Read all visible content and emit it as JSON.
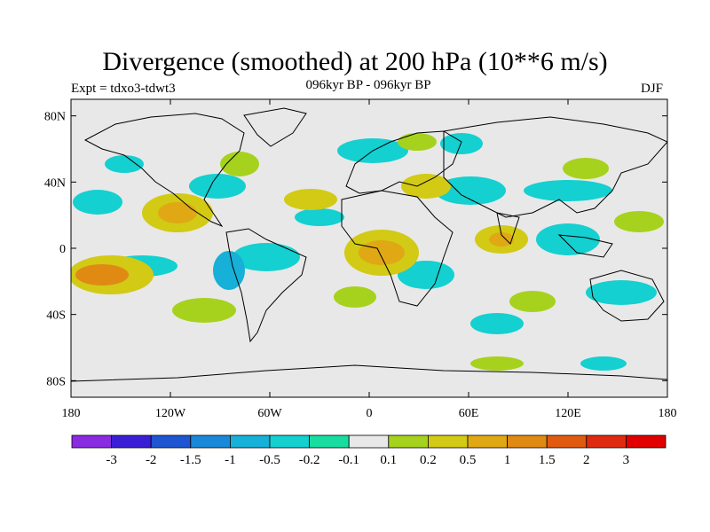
{
  "header": {
    "title": "Divergence (smoothed) at 200 hPa (10**6 m/s)",
    "expt": "Expt = tdxo3-tdwt3",
    "period": "096kyr BP - 096kyr BP",
    "season": "DJF"
  },
  "axes": {
    "y_ticks": [
      "80N",
      "40N",
      "0",
      "40S",
      "80S"
    ],
    "x_ticks": [
      "180",
      "120W",
      "60W",
      "0",
      "60E",
      "120E",
      "180"
    ]
  },
  "colorbar": {
    "labels": [
      "-3",
      "-2",
      "-1.5",
      "-1",
      "-0.5",
      "-0.2",
      "-0.1",
      "0.1",
      "0.2",
      "0.5",
      "1",
      "1.5",
      "2",
      "3"
    ],
    "colors": [
      "#8a2be2",
      "#3a1ed6",
      "#1e55d0",
      "#1a88d8",
      "#16b0d8",
      "#14d0d0",
      "#18dca0",
      "#e8e8e8",
      "#a6d21e",
      "#d2ca14",
      "#e0a814",
      "#e08a14",
      "#e05a10",
      "#e02a10",
      "#e00000"
    ]
  },
  "map": {
    "background": "#e8e8e8",
    "projection": "cylindrical-equidistant",
    "lon_range": [
      -180,
      180
    ],
    "lat_range": [
      -90,
      90
    ]
  }
}
